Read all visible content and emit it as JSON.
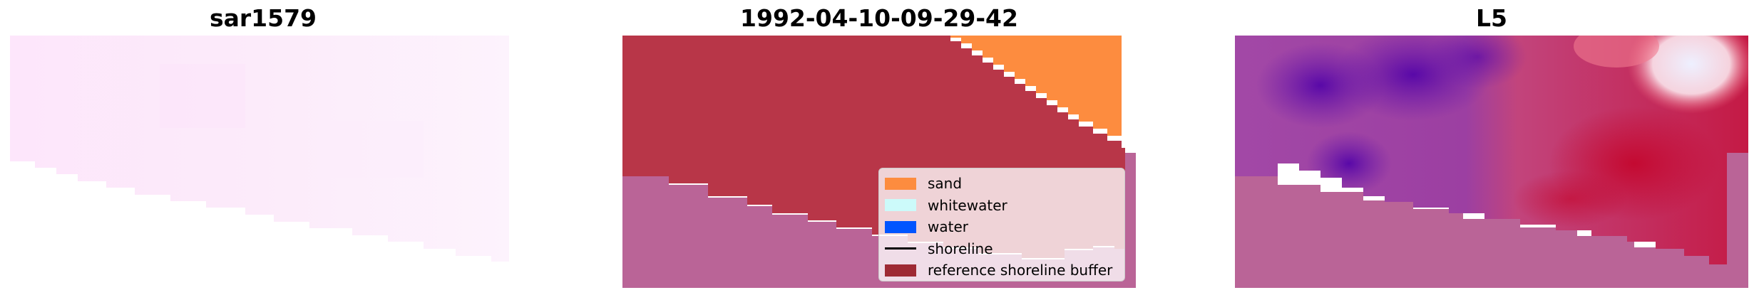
{
  "panels": {
    "left_title": "sar1579",
    "middle_title": "1992-04-10-09-29-42",
    "right_title": "L5"
  },
  "legend": {
    "items": [
      {
        "label": "sand",
        "color": "#fd8c3f",
        "kind": "patch"
      },
      {
        "label": "whitewater",
        "color": "#ccfafa",
        "kind": "patch"
      },
      {
        "label": "water",
        "color": "#0055ff",
        "kind": "patch"
      },
      {
        "label": "shoreline",
        "color": "#000000",
        "kind": "line"
      },
      {
        "label": "reference shoreline buffer",
        "color": "#9e2a34",
        "kind": "patch"
      }
    ]
  },
  "colors": {
    "rgb_tint": "#fde7fb",
    "buffer_red": "#b83648",
    "mask_magenta": "#ba6497",
    "sand_orange": "#fd8c3f",
    "index_purple": "#5b05a8",
    "index_red": "#c3113c"
  }
}
